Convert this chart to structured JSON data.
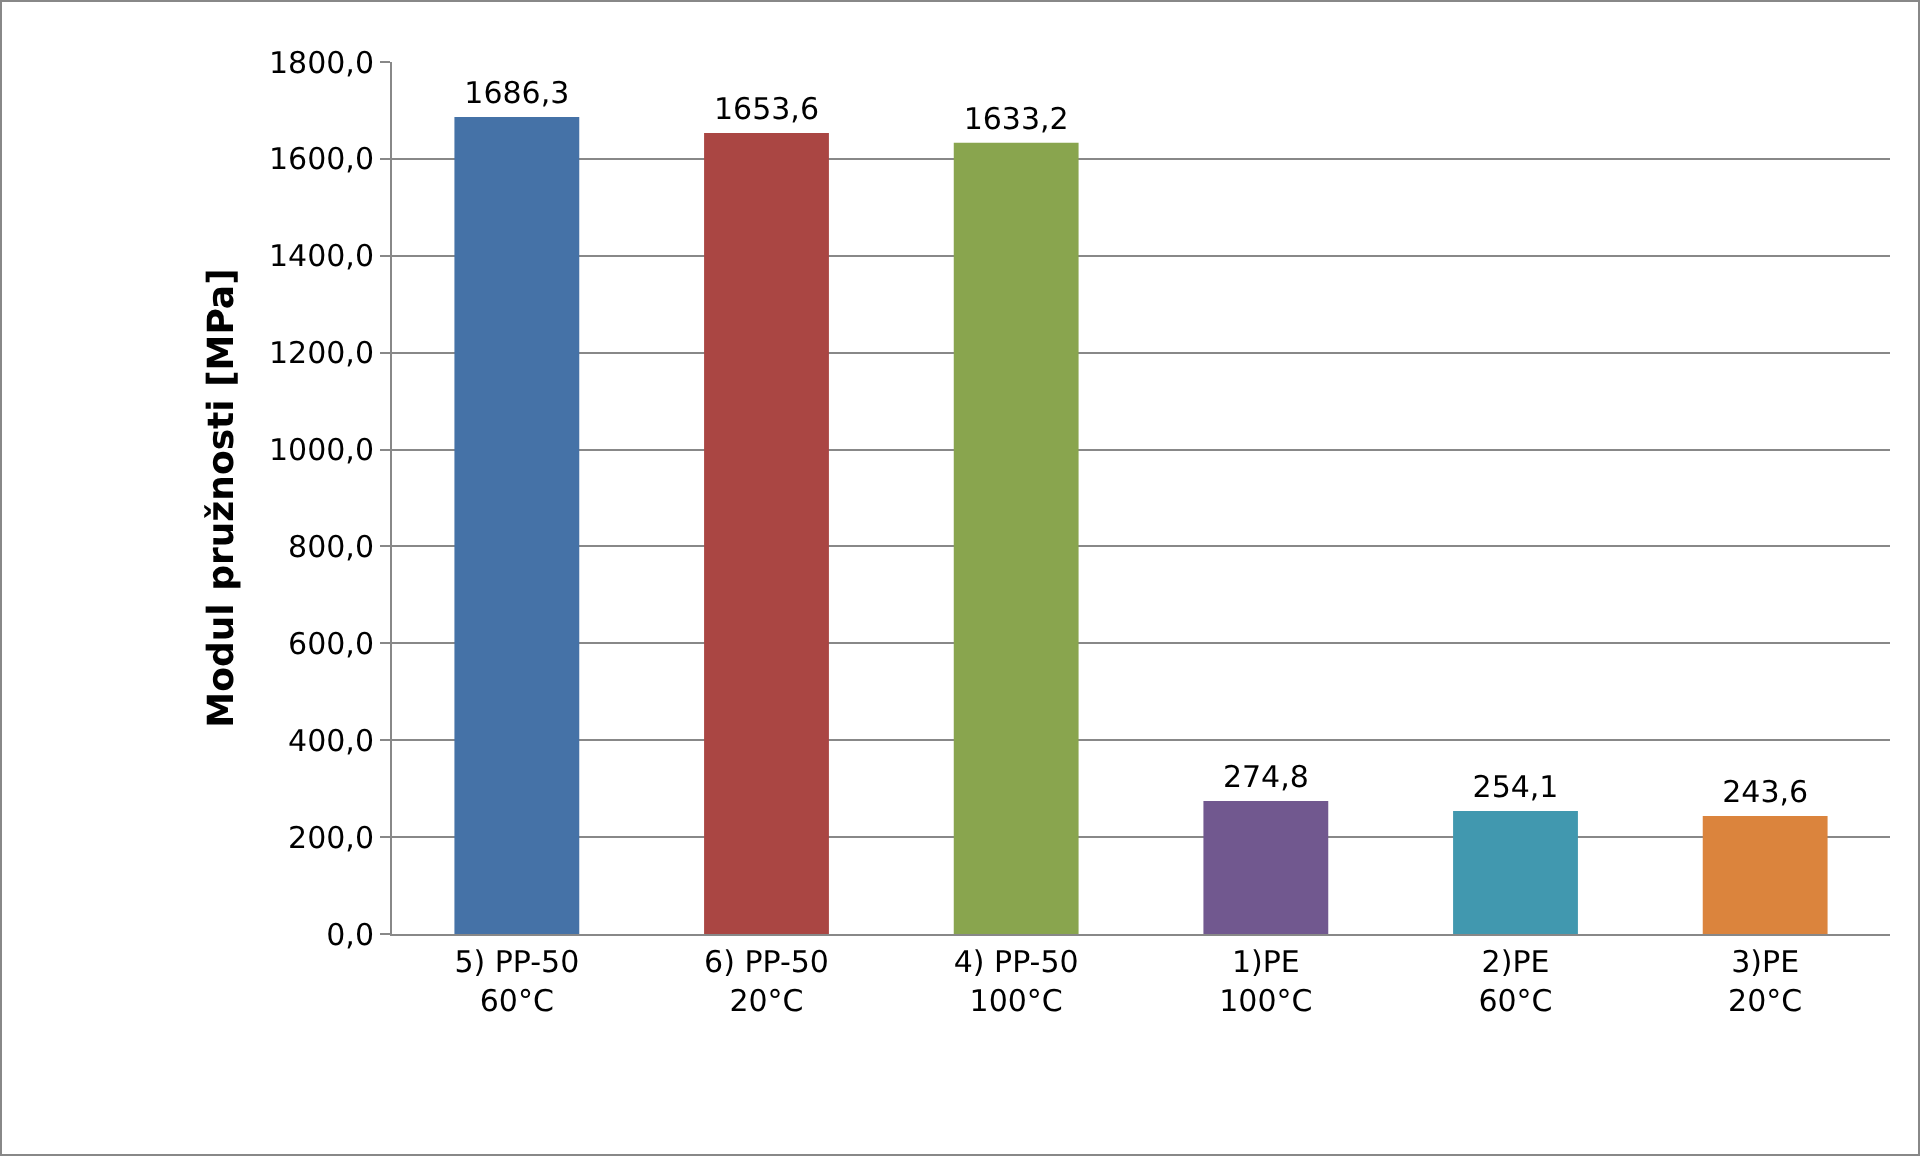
{
  "chart_data": {
    "type": "bar",
    "ylabel": "Modul pružnosti [MPa]",
    "categories": [
      "5) PP-50 60°C",
      "6) PP-50 20°C",
      "4) PP-50 100°C",
      "1)PE 100°C",
      "2)PE 60°C",
      "3)PE 20°C"
    ],
    "values": [
      1686.3,
      1653.6,
      1633.2,
      274.8,
      254.1,
      243.6
    ],
    "colors": [
      "#4572a7",
      "#aa4643",
      "#89a54e",
      "#71588f",
      "#4198af",
      "#db843d"
    ],
    "value_labels": [
      "1686,3",
      "1653,6",
      "1633,2",
      "274,8",
      "254,1",
      "243,6"
    ],
    "ylim": [
      0,
      1800
    ],
    "yticks": [
      {
        "value": 0,
        "label": "0,0"
      },
      {
        "value": 200,
        "label": "200,0"
      },
      {
        "value": 400,
        "label": "400,0"
      },
      {
        "value": 600,
        "label": "600,0"
      },
      {
        "value": 800,
        "label": "800,0"
      },
      {
        "value": 1000,
        "label": "1000,0"
      },
      {
        "value": 1200,
        "label": "1200,0"
      },
      {
        "value": 1400,
        "label": "1400,0"
      },
      {
        "value": 1600,
        "label": "1600,0"
      },
      {
        "value": 1800,
        "label": "1800,0"
      }
    ],
    "grid": "y"
  }
}
